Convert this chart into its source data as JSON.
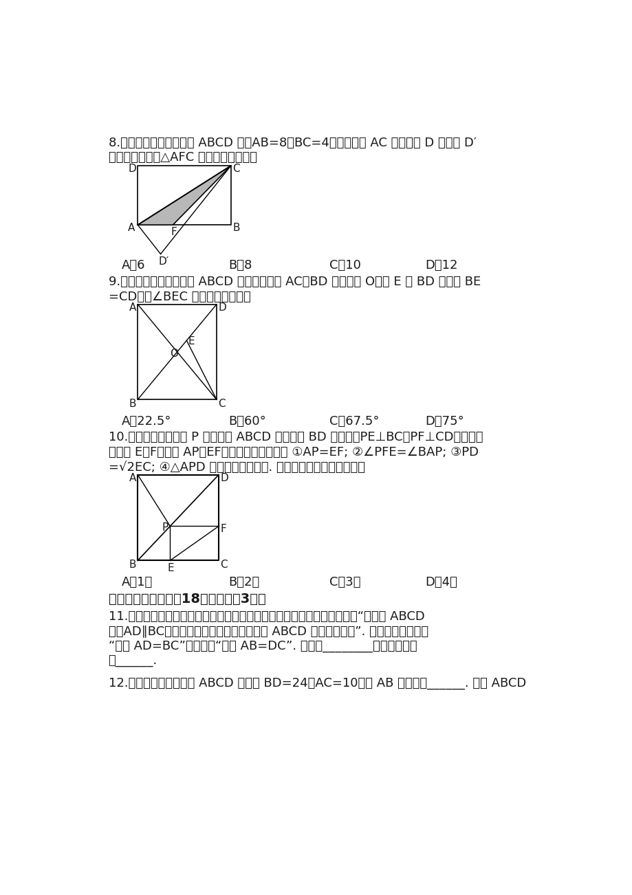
{
  "bg_color": "#ffffff",
  "text_color": "#1a1a1a",
  "q8_text1": "8.（３分）如图，在矩形 ABCD 中，AB=8，BC=4，将矩形沿 AC 折叠，点 D 落在点 D′",
  "q8_text2": "处，则重叠部分△AFC 的面积为（　　）",
  "q8_choices": [
    "A．6",
    "B．8",
    "C．10",
    "D．12"
  ],
  "q9_text1": "9.（３分）如图，正方形 ABCD 的两条对角线 AC，BD 相交于点 O，点 E 在 BD 上，且 BE",
  "q9_text2": "=CD，则∠BEC 的度数为（　　）",
  "q9_choices": [
    "A．22.5°",
    "B．60°",
    "C．67.5°",
    "D．75°"
  ],
  "q10_text1": "10.（３分）如图，点 P 是正方形 ABCD 的对角线 BD 上一点，PE⊥BC，PF⊥CD，垂足分",
  "q10_text2": "别为点 E，F，连接 AP，EF，给出下列四个结论 ①AP=EF; ②∠PFE=∠BAP; ③PD",
  "q10_text3": "=√2EC; ④△APD 一定是等腰三角形. 其中正确的结论有（　　）",
  "q10_choices": [
    "A．1个",
    "B．2个",
    "C．3个",
    "D．4个"
  ],
  "q11_title": "二、填空题（本题內18分，每小逃3分）",
  "q11_text1": "11.（３分）在研究了平行四边形的相关内容后，老师提出这样一个问题：“四边形 ABCD",
  "q11_text2": "中，AD∥BC，请添加一个条件，使得四边形 ABCD 是平行四边形”. 经过思考，小明说",
  "q11_text3": "“添加 AD=BC”，小红说“添加 AB=DC”. 你同意________的观点，理由",
  "q11_text4": "是______.",
  "q12_text1": "12.（３分）如图，菱形 ABCD 中，若 BD=24，AC=10，则 AB 的长等于______. 菱形 ABCD"
}
